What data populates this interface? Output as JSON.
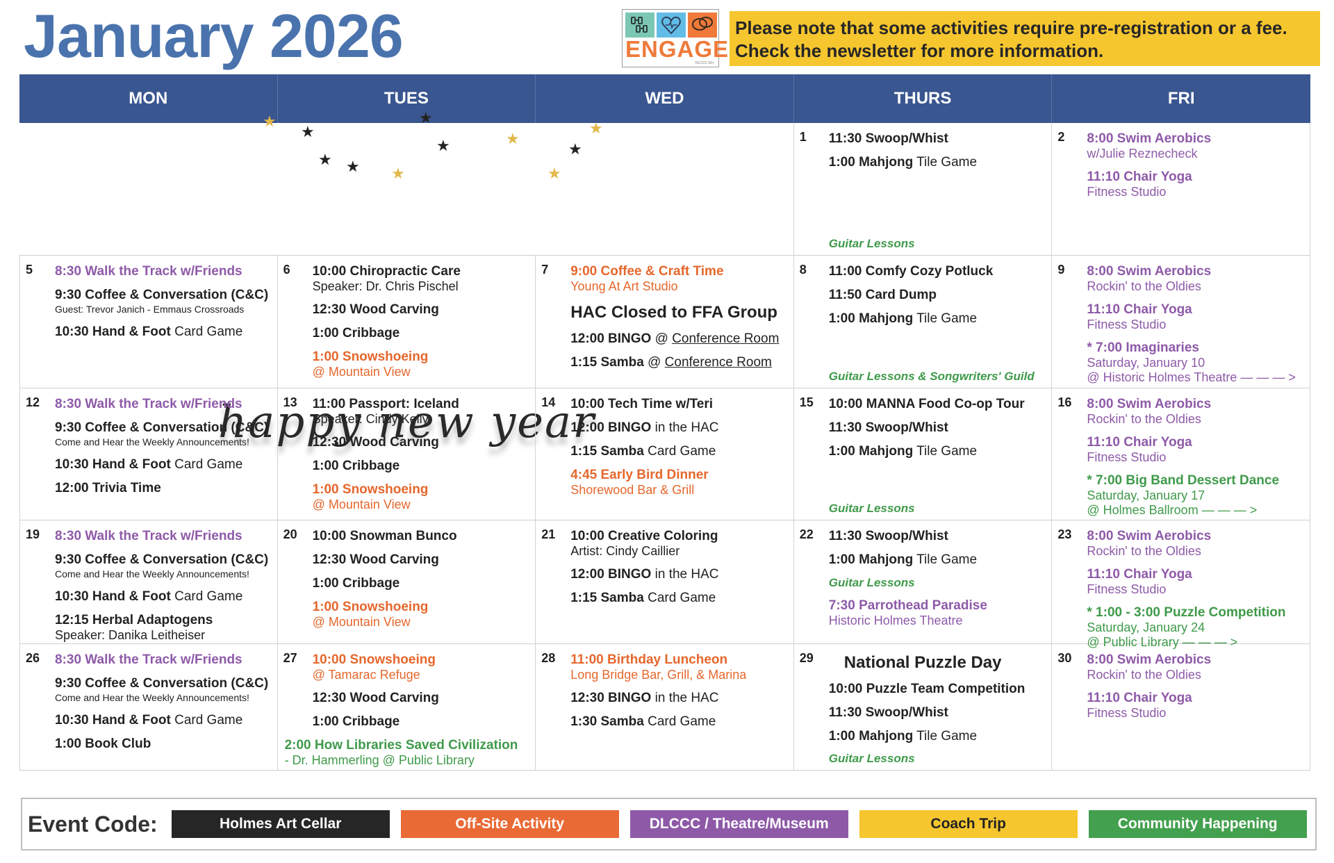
{
  "header": {
    "title": "January 2026",
    "logo": {
      "word": "ENGAGE",
      "sub": "DLCCC 50+",
      "icons": [
        "dumbbell-icon",
        "heart-pulse-icon",
        "speech-bubbles-icon"
      ]
    },
    "notice": [
      "Please note that some activities require pre-registration or a fee.",
      "Check the newsletter for more information."
    ]
  },
  "colors": {
    "title": "#4a73ad",
    "header_band": "#3a5690",
    "notice_bg": "#f6c62f",
    "black": "#222222",
    "orange": "#e5672c",
    "purple": "#8e5aa8",
    "green": "#3f9a4a"
  },
  "days": [
    "MON",
    "TUES",
    "WED",
    "THURS",
    "FRI"
  ],
  "banner": {
    "text": "happy new year"
  },
  "weeks": [
    {
      "cells": [
        null,
        null,
        null,
        {
          "date": "1",
          "events": [
            {
              "main": "11:30 Swoop/Whist",
              "color": "black"
            },
            {
              "main": "1:00 Mahjong",
              "rest": " Tile Game",
              "color": "black"
            }
          ],
          "bottom": "Guitar Lessons"
        },
        {
          "date": "2",
          "events": [
            {
              "main": "8:00 Swim Aerobics",
              "sub": "w/Julie Reznecheck",
              "color": "purple"
            },
            {
              "main": "11:10 Chair Yoga",
              "sub": "Fitness Studio",
              "color": "purple"
            }
          ]
        }
      ]
    },
    {
      "cells": [
        {
          "date": "5",
          "events": [
            {
              "main": "8:30 Walk the Track w/Friends",
              "color": "purple",
              "light": true
            },
            {
              "main": "9:30 Coffee & Conversation (C&C)",
              "sub": "Guest: Trevor Janich - Emmaus Crossroads",
              "small": true,
              "color": "black"
            },
            {
              "main": "10:30 Hand & Foot",
              "rest": " Card Game",
              "color": "black"
            }
          ]
        },
        {
          "date": "6",
          "events": [
            {
              "main": "10:00 Chiropractic Care",
              "sub": "Speaker: Dr. Chris Pischel",
              "color": "black"
            },
            {
              "main": "12:30 Wood Carving",
              "color": "black"
            },
            {
              "main": "1:00 Cribbage",
              "color": "black"
            },
            {
              "main": "1:00 Snowshoeing",
              "sub": "@ Mountain View",
              "color": "orange"
            }
          ]
        },
        {
          "date": "7",
          "events": [
            {
              "main": "9:00 Coffee & Craft Time",
              "sub": "Young At Art Studio",
              "color": "orange"
            },
            {
              "big": "HAC Closed to FFA Group"
            },
            {
              "main": "12:00 BINGO",
              "at": " @ ",
              "link": "Conference Room",
              "color": "black"
            },
            {
              "main": "1:15 Samba",
              "at": " @ ",
              "link": "Conference Room",
              "color": "black"
            }
          ]
        },
        {
          "date": "8",
          "events": [
            {
              "main": "11:00 Comfy Cozy Potluck",
              "color": "black"
            },
            {
              "main": "11:50 Card Dump",
              "color": "black"
            },
            {
              "main": "1:00 Mahjong",
              "rest": " Tile Game",
              "color": "black"
            }
          ],
          "bottom": "Guitar Lessons & Songwriters' Guild"
        },
        {
          "date": "9",
          "events": [
            {
              "main": "8:00 Swim Aerobics",
              "sub": "Rockin' to the Oldies",
              "color": "purple"
            },
            {
              "main": "11:10 Chair Yoga",
              "sub": "Fitness Studio",
              "color": "purple"
            },
            {
              "main": "* 7:00 Imaginaries",
              "sub": "Saturday, January 10",
              "sub2": "@ Historic Holmes Theatre — — — >",
              "color": "purple"
            }
          ]
        }
      ]
    },
    {
      "cells": [
        {
          "date": "12",
          "events": [
            {
              "main": "8:30 Walk the Track w/Friends",
              "color": "purple",
              "light": true
            },
            {
              "main": "9:30 Coffee & Conversation (C&C)",
              "sub": "Come and Hear the Weekly Announcements!",
              "small": true,
              "color": "black"
            },
            {
              "main": "10:30 Hand & Foot",
              "rest": " Card Game",
              "color": "black"
            },
            {
              "main": "12:00 Trivia Time",
              "color": "black"
            }
          ]
        },
        {
          "date": "13",
          "events": [
            {
              "main": "11:00 Passport: Iceland",
              "sub": "Speaker: Cindy Kelly",
              "color": "black"
            },
            {
              "main": "12:30 Wood Carving",
              "color": "black"
            },
            {
              "main": "1:00 Cribbage",
              "color": "black"
            },
            {
              "main": "1:00 Snowshoeing",
              "sub": "@ Mountain View",
              "color": "orange"
            }
          ]
        },
        {
          "date": "14",
          "events": [
            {
              "main": "10:00 Tech Time w/Teri",
              "color": "black"
            },
            {
              "main": "12:00 BINGO",
              "rest": " in the HAC",
              "color": "black"
            },
            {
              "main": "1:15 Samba",
              "rest": " Card Game",
              "color": "black"
            },
            {
              "main": "4:45 Early Bird Dinner",
              "sub": "Shorewood Bar & Grill",
              "color": "orange"
            }
          ]
        },
        {
          "date": "15",
          "events": [
            {
              "main": "10:00 MANNA Food Co-op Tour",
              "color": "black"
            },
            {
              "main": "11:30 Swoop/Whist",
              "color": "black"
            },
            {
              "main": "1:00 Mahjong",
              "rest": " Tile Game",
              "color": "black"
            }
          ],
          "bottom": "Guitar Lessons"
        },
        {
          "date": "16",
          "events": [
            {
              "main": "8:00 Swim Aerobics",
              "sub": "Rockin' to the Oldies",
              "color": "purple"
            },
            {
              "main": "11:10 Chair Yoga",
              "sub": "Fitness Studio",
              "color": "purple"
            },
            {
              "main": "* 7:00 Big Band Dessert Dance",
              "sub": "Saturday, January 17",
              "sub2": "@ Holmes Ballroom — — — >",
              "color": "green"
            }
          ]
        }
      ]
    },
    {
      "cells": [
        {
          "date": "19",
          "events": [
            {
              "main": "8:30 Walk the Track w/Friends",
              "color": "purple",
              "light": true
            },
            {
              "main": "9:30 Coffee & Conversation (C&C)",
              "sub": "Come and Hear the Weekly Announcements!",
              "small": true,
              "color": "black"
            },
            {
              "main": "10:30 Hand & Foot",
              "rest": " Card Game",
              "color": "black"
            },
            {
              "main": "12:15 Herbal Adaptogens",
              "sub": "Speaker: Danika Leitheiser",
              "color": "black"
            }
          ]
        },
        {
          "date": "20",
          "events": [
            {
              "main": "10:00 Snowman Bunco",
              "color": "black"
            },
            {
              "main": "12:30 Wood Carving",
              "color": "black"
            },
            {
              "main": "1:00 Cribbage",
              "color": "black"
            },
            {
              "main": "1:00 Snowshoeing",
              "sub": "@ Mountain View",
              "color": "orange"
            }
          ]
        },
        {
          "date": "21",
          "events": [
            {
              "main": "10:00 Creative Coloring",
              "sub": "Artist: Cindy Caillier",
              "color": "black"
            },
            {
              "main": "12:00 BINGO",
              "rest": " in the HAC",
              "color": "black"
            },
            {
              "main": "1:15 Samba",
              "rest": " Card Game",
              "color": "black"
            }
          ]
        },
        {
          "date": "22",
          "events": [
            {
              "main": "11:30 Swoop/Whist",
              "color": "black"
            },
            {
              "main": "1:00 Mahjong",
              "rest": " Tile Game",
              "color": "black"
            },
            {
              "italic": "Guitar Lessons"
            },
            {
              "main": "7:30 Parrothead Paradise",
              "sub": "Historic Holmes Theatre",
              "color": "purple"
            }
          ]
        },
        {
          "date": "23",
          "events": [
            {
              "main": "8:00 Swim Aerobics",
              "sub": "Rockin' to the Oldies",
              "color": "purple"
            },
            {
              "main": "11:10 Chair Yoga",
              "sub": "Fitness Studio",
              "color": "purple"
            },
            {
              "main": "* 1:00 - 3:00 Puzzle Competition",
              "sub": "Saturday, January 24",
              "sub2": "@ Public Library — — — >",
              "color": "green"
            }
          ]
        }
      ]
    },
    {
      "cells": [
        {
          "date": "26",
          "events": [
            {
              "main": "8:30 Walk the Track w/Friends",
              "color": "purple",
              "light": true
            },
            {
              "main": "9:30 Coffee & Conversation (C&C)",
              "sub": "Come and Hear the Weekly Announcements!",
              "small": true,
              "color": "black"
            },
            {
              "main": "10:30 Hand & Foot",
              "rest": " Card Game",
              "color": "black"
            },
            {
              "main": "1:00 Book Club",
              "color": "black"
            }
          ]
        },
        {
          "date": "27",
          "events": [
            {
              "main": "10:00 Snowshoeing",
              "sub": "@ Tamarac Refuge",
              "color": "orange"
            },
            {
              "main": "12:30 Wood Carving",
              "color": "black"
            },
            {
              "main": "1:00 Cribbage",
              "color": "black"
            },
            {
              "main": "2:00 How Libraries Saved Civilization",
              "sub": "- Dr. Hammerling @  Public Library",
              "color": "green",
              "outdent": true
            }
          ]
        },
        {
          "date": "28",
          "events": [
            {
              "main": "11:00 Birthday Luncheon",
              "sub": "Long Bridge Bar, Grill, & Marina",
              "color": "orange"
            },
            {
              "main": "12:30 BINGO",
              "rest": " in the HAC",
              "color": "black"
            },
            {
              "main": "1:30 Samba",
              "rest": " Card Game",
              "color": "black"
            }
          ]
        },
        {
          "date": "29",
          "events": [
            {
              "big": "National Puzzle Day"
            },
            {
              "main": "10:00 Puzzle Team Competition",
              "color": "black"
            },
            {
              "main": "11:30 Swoop/Whist",
              "color": "black"
            },
            {
              "main": "1:00 Mahjong",
              "rest": " Tile Game",
              "color": "black"
            }
          ],
          "bottom": "Guitar Lessons"
        },
        {
          "date": "30",
          "events": [
            {
              "main": "8:00 Swim Aerobics",
              "sub": "Rockin' to the Oldies",
              "color": "purple"
            },
            {
              "main": "11:10 Chair Yoga",
              "sub": "Fitness Studio",
              "color": "purple"
            }
          ]
        }
      ]
    }
  ],
  "legend": {
    "label": "Event Code:",
    "items": [
      {
        "label": "Holmes Art Cellar",
        "bg": "#262626",
        "fg": "#ffffff"
      },
      {
        "label": "Off-Site Activity",
        "bg": "#e96a35",
        "fg": "#ffffff"
      },
      {
        "label": "DLCCC / Theatre/Museum",
        "bg": "#8e5aa8",
        "fg": "#ffffff"
      },
      {
        "label": "Coach Trip",
        "bg": "#f6c62f",
        "fg": "#222222"
      },
      {
        "label": "Community Happening",
        "bg": "#43a04e",
        "fg": "#ffffff"
      }
    ]
  }
}
